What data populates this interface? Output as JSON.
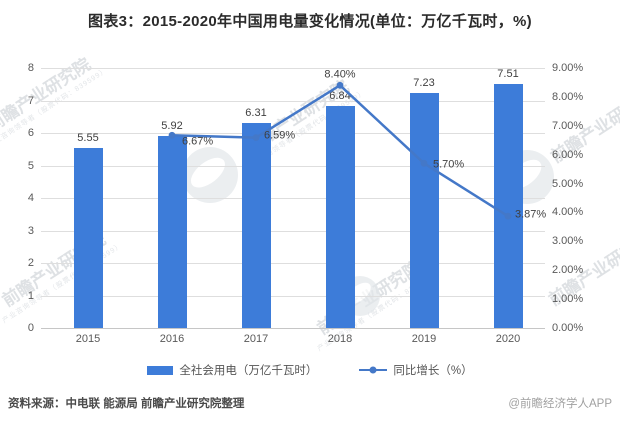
{
  "title": "图表3：2015-2020年中国用电量变化情况(单位：万亿千瓦时，%)",
  "chart_data": {
    "type": "bar",
    "title": "图表3：2015-2020年中国用电量变化情况(单位：万亿千瓦时，%)",
    "categories": [
      "2015",
      "2016",
      "2017",
      "2018",
      "2019",
      "2020"
    ],
    "series": [
      {
        "name": "全社会用电（万亿千瓦时）",
        "type": "bar",
        "axis": "left",
        "values": [
          5.55,
          5.92,
          6.31,
          6.84,
          7.23,
          7.51
        ],
        "labels": [
          "5.55",
          "5.92",
          "6.31",
          "6.84",
          "7.23",
          "7.51"
        ],
        "color": "#3D7CD9"
      },
      {
        "name": "同比增长（%）",
        "type": "line",
        "axis": "right",
        "values": [
          null,
          6.67,
          6.59,
          8.4,
          5.7,
          3.87
        ],
        "labels": [
          "",
          "6.67%",
          "6.59%",
          "8.40%",
          "5.70%",
          "3.87%"
        ],
        "color": "#4478C8"
      }
    ],
    "left_axis": {
      "min": 0,
      "max": 8,
      "step": 1,
      "ticks": [
        "0",
        "1",
        "2",
        "3",
        "4",
        "5",
        "6",
        "7",
        "8"
      ]
    },
    "right_axis": {
      "min": 0,
      "max": 9,
      "step": 1,
      "ticks": [
        "0.00%",
        "1.00%",
        "2.00%",
        "3.00%",
        "4.00%",
        "5.00%",
        "6.00%",
        "7.00%",
        "8.00%",
        "9.00%"
      ]
    },
    "grid": true,
    "legend_position": "bottom"
  },
  "legend": {
    "bar_label": "全社会用电（万亿千瓦时）",
    "line_label": "同比增长（%）"
  },
  "footer": {
    "source": "资料来源：中电联 能源局 前瞻产业研究院整理",
    "credit": "@前瞻经济学人APP"
  },
  "watermark": {
    "text": "前瞻产业研究院",
    "subtext": "产业咨询领导者（股票代码：839599）"
  },
  "colors": {
    "bar": "#3D7CD9",
    "line": "#4478C8",
    "grid": "#DDDDDD",
    "axis_text": "#595959",
    "label_text": "#3F3F3F"
  }
}
